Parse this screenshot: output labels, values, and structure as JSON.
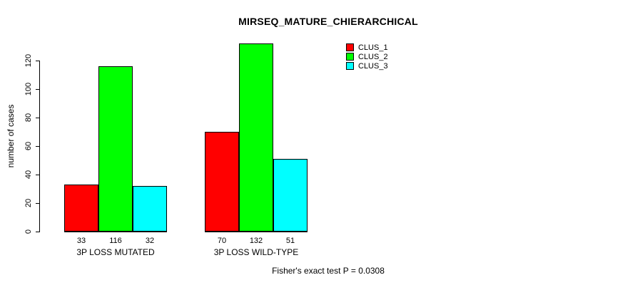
{
  "chart_data": {
    "type": "bar",
    "title": "MIRSEQ_MATURE_CHIERARCHICAL",
    "xlabel": "",
    "ylabel": "number of cases",
    "categories": [
      "3P LOSS MUTATED",
      "3P LOSS WILD-TYPE"
    ],
    "series": [
      {
        "name": "CLUS_1",
        "color": "#ff0000",
        "values": [
          33,
          70
        ]
      },
      {
        "name": "CLUS_2",
        "color": "#00ff00",
        "values": [
          116,
          132
        ]
      },
      {
        "name": "CLUS_3",
        "color": "#00ffff",
        "values": [
          32,
          51
        ]
      }
    ],
    "bar_value_labels": [
      [
        33,
        116,
        32
      ],
      [
        70,
        132,
        51
      ]
    ],
    "ylim": [
      0,
      132
    ],
    "yticks": [
      0,
      20,
      40,
      60,
      80,
      100,
      120
    ],
    "grid": false,
    "legend_position": "top-right",
    "annotation": "Fisher's exact test P = 0.0308"
  }
}
